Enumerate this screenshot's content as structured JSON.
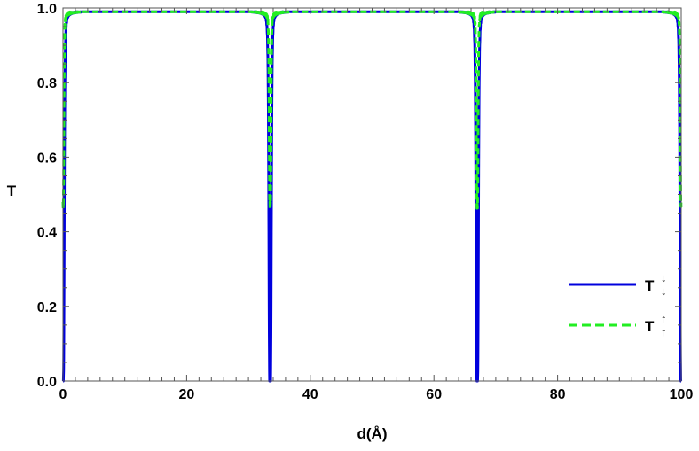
{
  "chart_data": {
    "type": "line",
    "title": "",
    "xlabel": "d(Å)",
    "ylabel": "T",
    "xlim": [
      0,
      100
    ],
    "ylim": [
      0,
      1.0
    ],
    "x_ticks": [
      0,
      20,
      40,
      60,
      80,
      100
    ],
    "y_ticks": [
      0.0,
      0.2,
      0.4,
      0.6,
      0.8,
      1.0
    ],
    "x_tick_labels": [
      "0",
      "20",
      "40",
      "60",
      "80",
      "100"
    ],
    "y_tick_labels": [
      "0.0",
      "0.2",
      "0.4",
      "0.6",
      "0.8",
      "1.0"
    ],
    "grid": false,
    "legend_position": "lower-right",
    "resonance_positions": [
      0.0,
      33.5,
      67.0,
      100.0
    ],
    "series": [
      {
        "name": "T",
        "legend_label": "T",
        "legend_arrows": "↓↓",
        "color": "#0000dd",
        "style": "solid",
        "baseline": 0.99,
        "minimum": 0.0
      },
      {
        "name": "T",
        "legend_label": "T",
        "legend_arrows": "↑↑",
        "color": "#22ee22",
        "style": "dashed",
        "baseline": 0.99,
        "minimum": 0.48
      }
    ]
  }
}
